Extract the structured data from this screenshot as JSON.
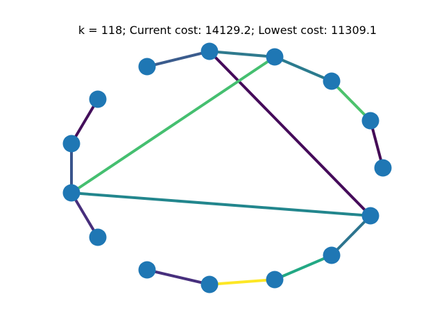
{
  "figure": {
    "title": "k = 118; Current cost: 14129.2; Lowest cost: 11309.1",
    "node_color": "#1f77b4"
  },
  "graph": {
    "nodes": [
      {
        "id": "n0"
      },
      {
        "id": "n1"
      },
      {
        "id": "n2"
      },
      {
        "id": "n3"
      },
      {
        "id": "n4"
      },
      {
        "id": "n5"
      },
      {
        "id": "n6"
      },
      {
        "id": "n7"
      },
      {
        "id": "n8"
      },
      {
        "id": "n9"
      },
      {
        "id": "n10"
      },
      {
        "id": "n11"
      },
      {
        "id": "n12"
      },
      {
        "id": "n13"
      },
      {
        "id": "n14"
      }
    ],
    "edges": [
      {
        "from": "n0",
        "to": "n1",
        "color": "#3b5c8d"
      },
      {
        "from": "n1",
        "to": "n2",
        "color": "#2f7a8e"
      },
      {
        "from": "n2",
        "to": "n3",
        "color": "#2b7b8e"
      },
      {
        "from": "n3",
        "to": "n4",
        "color": "#4cc26c"
      },
      {
        "from": "n4",
        "to": "n5",
        "color": "#440b56"
      },
      {
        "from": "n1",
        "to": "n6",
        "color": "#450b5a"
      },
      {
        "from": "n2",
        "to": "n11",
        "color": "#45bf70"
      },
      {
        "from": "n11",
        "to": "n6",
        "color": "#22868d"
      },
      {
        "from": "n6",
        "to": "n7",
        "color": "#2c748e"
      },
      {
        "from": "n7",
        "to": "n8",
        "color": "#22a884"
      },
      {
        "from": "n8",
        "to": "n9",
        "color": "#fde725"
      },
      {
        "from": "n9",
        "to": "n10",
        "color": "#472f7d"
      },
      {
        "from": "n11",
        "to": "n12",
        "color": "#472e7c"
      },
      {
        "from": "n11",
        "to": "n13",
        "color": "#3a558c"
      },
      {
        "from": "n13",
        "to": "n14",
        "color": "#440f5b"
      }
    ]
  }
}
